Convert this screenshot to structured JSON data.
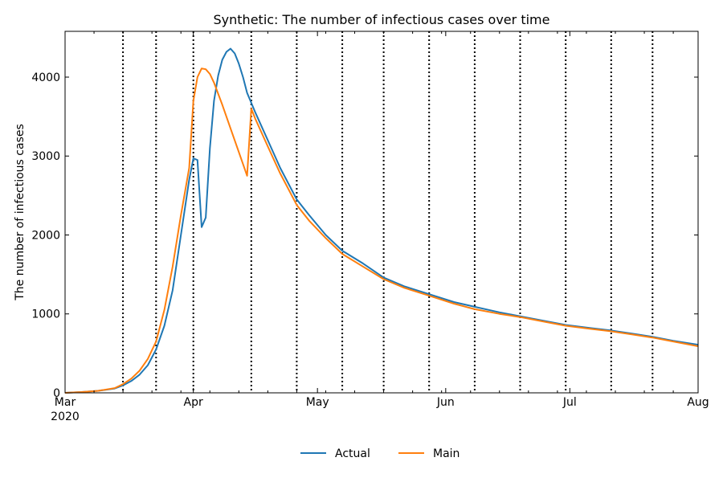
{
  "chart_data": {
    "type": "line",
    "title": "Synthetic: The number of infectious cases over time",
    "xlabel": "",
    "ylabel": "The number of infectious cases",
    "x_start": "2020-03-01",
    "x_end": "2020-08-01",
    "ylim": [
      0,
      4580
    ],
    "yticks": [
      0,
      1000,
      2000,
      3000,
      4000
    ],
    "ytick_labels": [
      "0",
      "1000",
      "2000",
      "3000",
      "4000"
    ],
    "xticks": [
      {
        "date": "2020-03-01",
        "label": "Mar",
        "sublabel": "2020"
      },
      {
        "date": "2020-04-01",
        "label": "Apr",
        "sublabel": ""
      },
      {
        "date": "2020-05-01",
        "label": "May",
        "sublabel": ""
      },
      {
        "date": "2020-06-01",
        "label": "Jun",
        "sublabel": ""
      },
      {
        "date": "2020-07-01",
        "label": "Jul",
        "sublabel": ""
      },
      {
        "date": "2020-08-01",
        "label": "Aug",
        "sublabel": ""
      }
    ],
    "vlines": [
      "2020-03-15",
      "2020-03-23",
      "2020-04-01",
      "2020-04-15",
      "2020-04-26",
      "2020-05-07",
      "2020-05-17",
      "2020-05-28",
      "2020-06-08",
      "2020-06-19",
      "2020-06-30",
      "2020-07-11",
      "2020-07-21"
    ],
    "grid": false,
    "legend": "bottom-center",
    "series": [
      {
        "name": "Actual",
        "color": "#1f77b4",
        "points": [
          [
            "2020-03-01",
            0
          ],
          [
            "2020-03-05",
            10
          ],
          [
            "2020-03-09",
            25
          ],
          [
            "2020-03-13",
            55
          ],
          [
            "2020-03-15",
            95
          ],
          [
            "2020-03-17",
            150
          ],
          [
            "2020-03-19",
            230
          ],
          [
            "2020-03-21",
            350
          ],
          [
            "2020-03-23",
            550
          ],
          [
            "2020-03-25",
            850
          ],
          [
            "2020-03-27",
            1300
          ],
          [
            "2020-03-29",
            2000
          ],
          [
            "2020-03-31",
            2700
          ],
          [
            "2020-04-01",
            2970
          ],
          [
            "2020-04-02",
            2950
          ],
          [
            "2020-04-03",
            2100
          ],
          [
            "2020-04-04",
            2220
          ],
          [
            "2020-04-05",
            3100
          ],
          [
            "2020-04-06",
            3700
          ],
          [
            "2020-04-07",
            4020
          ],
          [
            "2020-04-08",
            4220
          ],
          [
            "2020-04-09",
            4320
          ],
          [
            "2020-04-10",
            4360
          ],
          [
            "2020-04-11",
            4300
          ],
          [
            "2020-04-12",
            4170
          ],
          [
            "2020-04-13",
            4000
          ],
          [
            "2020-04-14",
            3800
          ],
          [
            "2020-04-16",
            3550
          ],
          [
            "2020-04-19",
            3200
          ],
          [
            "2020-04-22",
            2850
          ],
          [
            "2020-04-26",
            2450
          ],
          [
            "2020-04-29",
            2250
          ],
          [
            "2020-05-03",
            2000
          ],
          [
            "2020-05-07",
            1800
          ],
          [
            "2020-05-12",
            1640
          ],
          [
            "2020-05-17",
            1460
          ],
          [
            "2020-05-22",
            1350
          ],
          [
            "2020-05-28",
            1250
          ],
          [
            "2020-06-03",
            1150
          ],
          [
            "2020-06-08",
            1090
          ],
          [
            "2020-06-14",
            1020
          ],
          [
            "2020-06-19",
            970
          ],
          [
            "2020-06-25",
            910
          ],
          [
            "2020-06-30",
            860
          ],
          [
            "2020-07-06",
            820
          ],
          [
            "2020-07-11",
            790
          ],
          [
            "2020-07-16",
            750
          ],
          [
            "2020-07-21",
            710
          ],
          [
            "2020-07-26",
            660
          ],
          [
            "2020-08-01",
            610
          ]
        ]
      },
      {
        "name": "Main",
        "color": "#ff7f0e",
        "points": [
          [
            "2020-03-01",
            0
          ],
          [
            "2020-03-05",
            10
          ],
          [
            "2020-03-09",
            25
          ],
          [
            "2020-03-13",
            60
          ],
          [
            "2020-03-15",
            110
          ],
          [
            "2020-03-17",
            180
          ],
          [
            "2020-03-19",
            280
          ],
          [
            "2020-03-21",
            430
          ],
          [
            "2020-03-23",
            650
          ],
          [
            "2020-03-25",
            1050
          ],
          [
            "2020-03-27",
            1600
          ],
          [
            "2020-03-29",
            2250
          ],
          [
            "2020-03-31",
            2850
          ],
          [
            "2020-04-01",
            3700
          ],
          [
            "2020-04-02",
            4000
          ],
          [
            "2020-04-03",
            4110
          ],
          [
            "2020-04-04",
            4100
          ],
          [
            "2020-04-05",
            4040
          ],
          [
            "2020-04-06",
            3930
          ],
          [
            "2020-04-08",
            3650
          ],
          [
            "2020-04-10",
            3350
          ],
          [
            "2020-04-12",
            3050
          ],
          [
            "2020-04-14",
            2750
          ],
          [
            "2020-04-15",
            3600
          ],
          [
            "2020-04-16",
            3470
          ],
          [
            "2020-04-19",
            3120
          ],
          [
            "2020-04-22",
            2780
          ],
          [
            "2020-04-26",
            2380
          ],
          [
            "2020-04-29",
            2180
          ],
          [
            "2020-05-03",
            1960
          ],
          [
            "2020-05-07",
            1760
          ],
          [
            "2020-05-12",
            1600
          ],
          [
            "2020-05-17",
            1440
          ],
          [
            "2020-05-22",
            1330
          ],
          [
            "2020-05-28",
            1230
          ],
          [
            "2020-06-03",
            1130
          ],
          [
            "2020-06-08",
            1060
          ],
          [
            "2020-06-14",
            1000
          ],
          [
            "2020-06-19",
            960
          ],
          [
            "2020-06-25",
            900
          ],
          [
            "2020-06-30",
            850
          ],
          [
            "2020-07-06",
            810
          ],
          [
            "2020-07-11",
            780
          ],
          [
            "2020-07-16",
            740
          ],
          [
            "2020-07-21",
            700
          ],
          [
            "2020-07-26",
            650
          ],
          [
            "2020-08-01",
            590
          ]
        ]
      }
    ]
  }
}
